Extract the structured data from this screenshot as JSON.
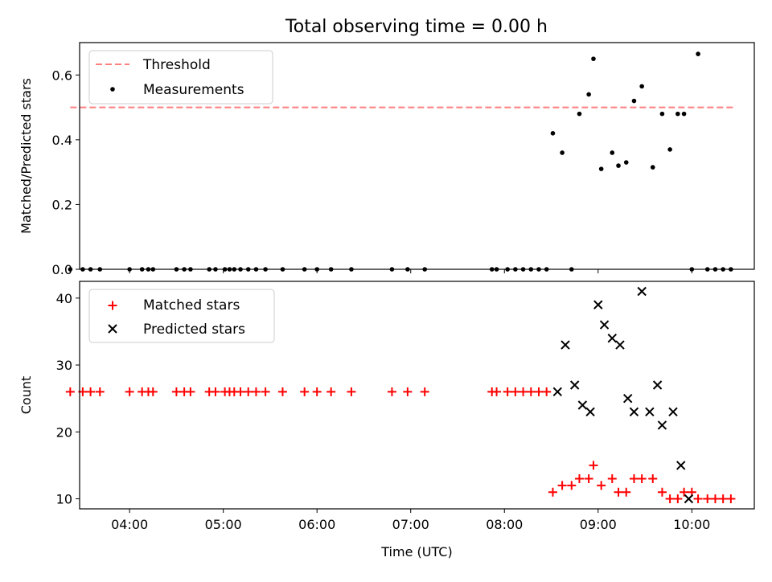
{
  "title": "Total observing time = 0.00 h",
  "colors": {
    "threshold": "#ff7f7f",
    "measurement": "#000000",
    "matched": "#ff0000",
    "predicted": "#000000"
  },
  "chart_data": [
    {
      "type": "scatter",
      "ylabel": "Matched/Predicted stars",
      "ylim": [
        0,
        0.7
      ],
      "yticks": [
        0.0,
        0.2,
        0.4,
        0.6
      ],
      "ytick_labels": [
        "0.0",
        "0.2",
        "0.4",
        "0.6"
      ],
      "xlim": [
        "03:28",
        "10:40"
      ],
      "legend_position": "top-left",
      "threshold": {
        "name": "Threshold",
        "value": 0.5,
        "x_range": [
          "03:22",
          "10:28"
        ]
      },
      "series": [
        {
          "name": "Measurements",
          "x": [
            "03:22",
            "03:30",
            "03:35",
            "03:41",
            "04:00",
            "04:08",
            "04:12",
            "04:15",
            "04:30",
            "04:35",
            "04:39",
            "04:51",
            "04:55",
            "05:01",
            "05:04",
            "05:07",
            "05:11",
            "05:16",
            "05:21",
            "05:27",
            "05:38",
            "05:52",
            "06:00",
            "06:09",
            "06:22",
            "06:48",
            "06:58",
            "07:09",
            "07:52",
            "07:55",
            "08:02",
            "08:07",
            "08:12",
            "08:17",
            "08:22",
            "08:27",
            "08:31",
            "08:37",
            "08:43",
            "08:48",
            "08:54",
            "08:57",
            "09:02",
            "09:09",
            "09:13",
            "09:18",
            "09:23",
            "09:28",
            "09:35",
            "09:41",
            "09:46",
            "09:51",
            "09:55",
            "10:00",
            "10:04",
            "10:10",
            "10:15",
            "10:20",
            "10:25"
          ],
          "values": [
            0,
            0,
            0,
            0,
            0,
            0,
            0,
            0,
            0,
            0,
            0,
            0,
            0,
            0,
            0,
            0,
            0,
            0,
            0,
            0,
            0,
            0,
            0,
            0,
            0,
            0,
            0,
            0,
            0,
            0,
            0,
            0,
            0,
            0,
            0,
            0,
            0.42,
            0.36,
            0,
            0.48,
            0.54,
            0.65,
            0.31,
            0.36,
            0.32,
            0.33,
            0.52,
            0.565,
            0.315,
            0.48,
            0.37,
            0.48,
            0.48,
            0,
            0.665,
            0,
            0,
            0,
            0
          ]
        }
      ]
    },
    {
      "type": "scatter",
      "xlabel": "Time (UTC)",
      "ylabel": "Count",
      "ylim": [
        8.5,
        42.5
      ],
      "yticks": [
        10,
        20,
        30,
        40
      ],
      "ytick_labels": [
        "10",
        "20",
        "30",
        "40"
      ],
      "xlim": [
        "03:28",
        "10:40"
      ],
      "xticks": [
        "04:00",
        "05:00",
        "06:00",
        "07:00",
        "08:00",
        "09:00",
        "10:00"
      ],
      "xtick_labels": [
        "04:00",
        "05:00",
        "06:00",
        "07:00",
        "08:00",
        "09:00",
        "10:00"
      ],
      "legend_position": "top-left",
      "series": [
        {
          "name": "Matched stars",
          "x": [
            "03:22",
            "03:30",
            "03:35",
            "03:41",
            "04:00",
            "04:08",
            "04:12",
            "04:15",
            "04:30",
            "04:35",
            "04:39",
            "04:51",
            "04:55",
            "05:01",
            "05:04",
            "05:07",
            "05:11",
            "05:16",
            "05:21",
            "05:27",
            "05:38",
            "05:52",
            "06:00",
            "06:09",
            "06:22",
            "06:48",
            "06:58",
            "07:09",
            "07:52",
            "07:55",
            "08:02",
            "08:07",
            "08:12",
            "08:17",
            "08:22",
            "08:27",
            "08:31",
            "08:37",
            "08:43",
            "08:48",
            "08:54",
            "08:57",
            "09:02",
            "09:09",
            "09:13",
            "09:18",
            "09:23",
            "09:28",
            "09:35",
            "09:41",
            "09:46",
            "09:51",
            "09:55",
            "10:00",
            "10:04",
            "10:10",
            "10:15",
            "10:20",
            "10:25"
          ],
          "values": [
            26,
            26,
            26,
            26,
            26,
            26,
            26,
            26,
            26,
            26,
            26,
            26,
            26,
            26,
            26,
            26,
            26,
            26,
            26,
            26,
            26,
            26,
            26,
            26,
            26,
            26,
            26,
            26,
            26,
            26,
            26,
            26,
            26,
            26,
            26,
            26,
            11,
            12,
            12,
            13,
            13,
            15,
            12,
            13,
            11,
            11,
            13,
            13,
            13,
            11,
            10,
            10,
            11,
            11,
            10,
            10,
            10,
            10,
            10
          ]
        },
        {
          "name": "Predicted stars",
          "x": [
            "08:34",
            "08:39",
            "08:45",
            "08:50",
            "08:55",
            "09:00",
            "09:04",
            "09:09",
            "09:14",
            "09:19",
            "09:23",
            "09:28",
            "09:33",
            "09:38",
            "09:41",
            "09:48",
            "09:53",
            "09:58"
          ],
          "values": [
            26,
            33,
            27,
            24,
            23,
            39,
            36,
            34,
            33,
            25,
            23,
            41,
            23,
            27,
            21,
            23,
            15,
            10
          ]
        }
      ]
    }
  ]
}
